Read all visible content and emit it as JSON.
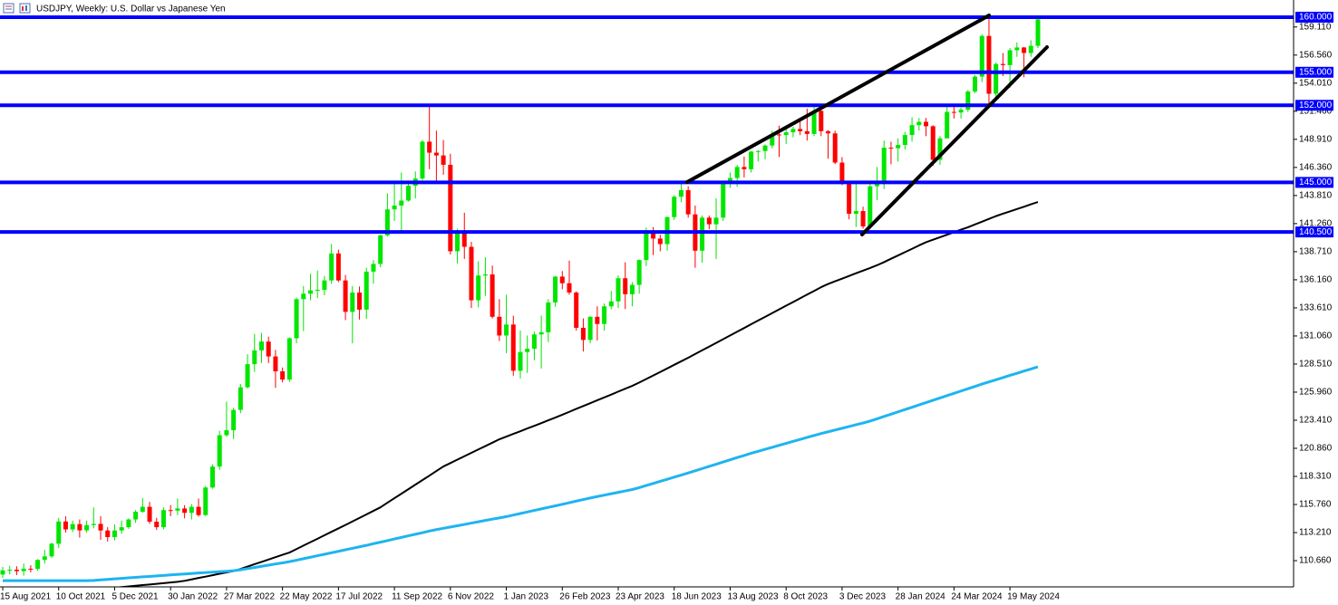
{
  "chart_data": {
    "type": "candlestick",
    "title": "USDJPY, Weekly:  U.S. Dollar vs Japanese Yen",
    "up_color": "#00e600",
    "down_color": "#ff0000",
    "ylim": [
      108.28,
      161.56
    ],
    "yticks": [
      {
        "value": 110.66,
        "label": "110.660"
      },
      {
        "value": 113.21,
        "label": "113.210"
      },
      {
        "value": 115.76,
        "label": "115.760"
      },
      {
        "value": 118.31,
        "label": "118.310"
      },
      {
        "value": 120.86,
        "label": "120.860"
      },
      {
        "value": 123.41,
        "label": "123.410"
      },
      {
        "value": 125.96,
        "label": "125.960"
      },
      {
        "value": 128.51,
        "label": "128.510"
      },
      {
        "value": 131.06,
        "label": "131.060"
      },
      {
        "value": 133.61,
        "label": "133.610"
      },
      {
        "value": 136.16,
        "label": "136.160"
      },
      {
        "value": 138.71,
        "label": "138.710"
      },
      {
        "value": 141.26,
        "label": "141.260"
      },
      {
        "value": 143.81,
        "label": "143.810"
      },
      {
        "value": 146.36,
        "label": "146.360"
      },
      {
        "value": 148.91,
        "label": "148.910"
      },
      {
        "value": 151.46,
        "label": "151.460"
      },
      {
        "value": 154.01,
        "label": "154.010"
      },
      {
        "value": 156.56,
        "label": "156.560"
      },
      {
        "value": 159.11,
        "label": "159.110"
      }
    ],
    "level_color": "#0000ff",
    "levels": [
      {
        "value": 160,
        "label": "160.000"
      },
      {
        "value": 155,
        "label": "155.000"
      },
      {
        "value": 152,
        "label": "152.000"
      },
      {
        "value": 145,
        "label": "145.000"
      },
      {
        "value": 140.5,
        "label": "140.500"
      }
    ],
    "categories": [
      "15 Aug 2021",
      null,
      null,
      null,
      null,
      null,
      null,
      null,
      "10 Oct 2021",
      null,
      null,
      null,
      null,
      null,
      null,
      null,
      "5 Dec 2021",
      null,
      null,
      null,
      null,
      null,
      null,
      null,
      "30 Jan 2022",
      null,
      null,
      null,
      null,
      null,
      null,
      null,
      "27 Mar 2022",
      null,
      null,
      null,
      null,
      null,
      null,
      null,
      "22 May 2022",
      null,
      null,
      null,
      null,
      null,
      null,
      null,
      "17 Jul 2022",
      null,
      null,
      null,
      null,
      null,
      null,
      null,
      "11 Sep 2022",
      null,
      null,
      null,
      null,
      null,
      null,
      null,
      "6 Nov 2022",
      null,
      null,
      null,
      null,
      null,
      null,
      null,
      "1 Jan 2023",
      null,
      null,
      null,
      null,
      null,
      null,
      null,
      "26 Feb 2023",
      null,
      null,
      null,
      null,
      null,
      null,
      null,
      "23 Apr 2023",
      null,
      null,
      null,
      null,
      null,
      null,
      null,
      "18 Jun 2023",
      null,
      null,
      null,
      null,
      null,
      null,
      null,
      "13 Aug 2023",
      null,
      null,
      null,
      null,
      null,
      null,
      null,
      "8 Oct 2023",
      null,
      null,
      null,
      null,
      null,
      null,
      null,
      "3 Dec 2023",
      null,
      null,
      null,
      null,
      null,
      null,
      null,
      "28 Jan 2024",
      null,
      null,
      null,
      null,
      null,
      null,
      null,
      "24 Mar 2024",
      null,
      null,
      null,
      null,
      null,
      null,
      null,
      "19 May 2024",
      null,
      null,
      null,
      null
    ],
    "open": [
      109.4,
      109.78,
      109.84,
      109.71,
      109.93,
      109.92,
      110.73,
      111.05,
      112.2,
      114.22,
      113.5,
      113.98,
      113.41,
      113.89,
      114.0,
      113.4,
      112.8,
      113.4,
      113.7,
      114.4,
      115.1,
      115.55,
      114.2,
      113.7,
      115.25,
      115.2,
      115.4,
      115.0,
      115.55,
      114.8,
      117.3,
      119.2,
      122.05,
      122.5,
      124.35,
      126.4,
      128.5,
      129.75,
      130.55,
      129.2,
      127.85,
      127.1,
      130.85,
      134.4,
      134.9,
      135.2,
      135.25,
      136.1,
      138.55,
      136.1,
      133.25,
      135.0,
      133.45,
      136.9,
      137.6,
      140.2,
      142.55,
      142.9,
      143.35,
      144.7,
      145.35,
      148.7,
      147.7,
      147.45,
      146.6,
      138.75,
      140.4,
      139.15,
      134.3,
      136.55,
      136.65,
      132.8,
      131.1,
      132.1,
      127.9,
      129.6,
      129.9,
      131.2,
      131.4,
      134.1,
      136.45,
      135.85,
      135.0,
      131.8,
      130.7,
      132.8,
      132.15,
      133.75,
      134.2,
      136.3,
      134.85,
      135.7,
      137.95,
      140.6,
      139.9,
      139.4,
      141.85,
      143.7,
      144.3,
      142.1,
      138.8,
      141.8,
      141.2,
      141.8,
      144.95,
      145.4,
      146.4,
      146.2,
      147.8,
      147.85,
      148.35,
      149.35,
      149.3,
      149.55,
      149.85,
      149.65,
      149.4,
      151.5,
      149.65,
      149.45,
      146.8,
      144.95,
      142.15,
      142.4,
      141.0,
      144.65,
      144.9,
      148.15,
      148.1,
      148.4,
      149.3,
      150.2,
      150.5,
      150.1,
      147.05,
      149.0,
      151.4,
      151.35,
      151.6,
      153.25,
      154.6,
      158.3,
      153.05,
      155.75,
      155.65,
      157.0,
      157.25,
      156.75,
      157.4
    ],
    "high": [
      110.1,
      110.2,
      110.15,
      110.4,
      110.25,
      110.8,
      111.65,
      112.3,
      114.55,
      114.7,
      114.3,
      114.4,
      114.3,
      115.5,
      114.7,
      113.7,
      113.95,
      114.3,
      114.5,
      115.25,
      116.35,
      116.0,
      114.55,
      115.5,
      115.7,
      116.3,
      115.7,
      115.8,
      116.3,
      117.45,
      119.4,
      122.45,
      125.1,
      124.55,
      126.7,
      129.4,
      131.25,
      131.35,
      131.0,
      129.8,
      128.2,
      130.95,
      134.55,
      135.6,
      136.7,
      137.0,
      136.5,
      139.4,
      138.9,
      136.6,
      135.6,
      135.55,
      137.25,
      137.95,
      140.25,
      144.0,
      144.95,
      145.9,
      145.0,
      146.0,
      148.85,
      151.95,
      149.7,
      148.85,
      147.6,
      140.8,
      142.25,
      139.6,
      137.85,
      138.2,
      137.45,
      134.4,
      134.8,
      132.9,
      131.55,
      131.1,
      131.45,
      132.9,
      134.4,
      136.5,
      136.95,
      137.9,
      135.1,
      132.65,
      132.85,
      133.75,
      134.0,
      135.15,
      136.55,
      137.75,
      135.95,
      138.0,
      140.9,
      140.95,
      140.25,
      141.9,
      143.85,
      145.05,
      144.65,
      142.9,
      142.0,
      142.0,
      143.55,
      145.0,
      145.9,
      146.6,
      147.35,
      147.85,
      147.95,
      148.45,
      149.7,
      150.15,
      149.85,
      150.05,
      150.75,
      151.7,
      151.9,
      151.9,
      149.75,
      149.7,
      147.3,
      145.0,
      144.95,
      142.8,
      145.0,
      146.4,
      148.8,
      148.7,
      149.0,
      149.6,
      150.9,
      150.85,
      150.85,
      150.2,
      149.2,
      151.85,
      151.95,
      151.8,
      153.4,
      154.75,
      158.45,
      160.2,
      155.9,
      156.75,
      157.2,
      157.7,
      157.3,
      157.9,
      159.95
    ],
    "low": [
      109.1,
      109.4,
      109.35,
      109.3,
      109.6,
      109.75,
      110.4,
      110.9,
      111.8,
      113.2,
      113.25,
      112.75,
      113.2,
      113.6,
      112.55,
      112.4,
      112.5,
      113.1,
      113.55,
      114.1,
      115.0,
      114.0,
      113.45,
      113.5,
      114.7,
      114.8,
      114.5,
      114.4,
      114.65,
      114.7,
      117.2,
      118.9,
      121.9,
      121.7,
      124.05,
      126.3,
      127.8,
      128.6,
      128.6,
      126.35,
      126.85,
      126.9,
      130.4,
      131.5,
      134.3,
      134.5,
      134.75,
      135.8,
      135.95,
      132.5,
      130.4,
      132.55,
      132.6,
      135.8,
      137.3,
      140.1,
      141.5,
      140.35,
      143.25,
      143.55,
      145.2,
      146.2,
      145.1,
      145.7,
      138.45,
      137.65,
      138.05,
      133.6,
      133.65,
      134.7,
      132.65,
      130.6,
      129.5,
      127.45,
      127.2,
      127.7,
      128.85,
      128.1,
      130.5,
      133.7,
      135.3,
      134.8,
      131.55,
      129.65,
      130.4,
      130.65,
      131.55,
      133.5,
      133.6,
      133.5,
      133.75,
      134.9,
      137.4,
      138.4,
      138.75,
      138.8,
      141.6,
      143.2,
      141.8,
      137.25,
      137.7,
      140.75,
      138.05,
      141.5,
      144.5,
      144.6,
      145.45,
      145.9,
      146.9,
      147.1,
      148.1,
      147.3,
      148.5,
      149.1,
      149.3,
      148.8,
      149.2,
      149.2,
      147.15,
      146.65,
      144.75,
      141.65,
      140.95,
      140.8,
      140.85,
      143.4,
      144.4,
      146.65,
      146.9,
      148.0,
      148.7,
      149.7,
      149.2,
      146.5,
      146.6,
      149.0,
      150.8,
      150.8,
      151.4,
      153.1,
      154.1,
      151.85,
      152.8,
      154.65,
      153.6,
      156.4,
      154.55,
      156.4,
      157.2
    ],
    "close": [
      109.78,
      109.84,
      109.71,
      109.93,
      109.92,
      110.73,
      111.05,
      112.2,
      114.22,
      113.5,
      113.98,
      113.41,
      113.89,
      114.0,
      113.4,
      112.8,
      113.4,
      113.7,
      114.4,
      115.1,
      115.55,
      114.2,
      113.7,
      115.25,
      115.2,
      115.4,
      115.0,
      115.55,
      114.8,
      117.3,
      119.2,
      122.05,
      122.5,
      124.35,
      126.4,
      128.5,
      129.75,
      130.55,
      129.2,
      127.85,
      127.1,
      130.85,
      134.4,
      134.9,
      135.2,
      135.25,
      136.1,
      138.55,
      136.1,
      133.25,
      135.0,
      133.45,
      136.9,
      137.6,
      140.2,
      142.55,
      142.9,
      143.35,
      144.7,
      145.35,
      148.7,
      147.7,
      147.45,
      146.6,
      138.75,
      140.4,
      139.15,
      134.3,
      136.55,
      136.65,
      132.8,
      131.1,
      132.1,
      127.9,
      129.6,
      129.9,
      131.2,
      131.4,
      134.1,
      136.45,
      135.85,
      135.0,
      131.8,
      130.7,
      132.8,
      132.15,
      133.75,
      134.2,
      136.3,
      134.85,
      135.7,
      137.95,
      140.6,
      139.9,
      139.4,
      141.85,
      143.7,
      144.3,
      142.1,
      138.8,
      141.8,
      141.2,
      141.8,
      144.95,
      145.4,
      146.4,
      146.2,
      147.8,
      147.85,
      148.35,
      149.35,
      149.3,
      149.55,
      149.85,
      149.65,
      149.4,
      151.5,
      149.65,
      149.45,
      146.8,
      144.95,
      142.15,
      142.4,
      141.0,
      144.65,
      144.9,
      148.15,
      148.1,
      148.4,
      149.3,
      150.2,
      150.5,
      150.1,
      147.05,
      149.0,
      151.4,
      151.35,
      151.6,
      153.25,
      154.6,
      158.3,
      153.05,
      155.75,
      155.65,
      157.0,
      157.25,
      156.75,
      157.4,
      159.8
    ],
    "series": [
      {
        "color": "#000000",
        "values": [
          null,
          null,
          null,
          null,
          null,
          null,
          null,
          null,
          null,
          null,
          null,
          null,
          null,
          null,
          108.08,
          108.14,
          108.2,
          108.26,
          108.32,
          108.38,
          108.44,
          108.5,
          108.56,
          108.62,
          108.68,
          108.74,
          108.83,
          108.96,
          109.09,
          109.21,
          109.34,
          109.47,
          109.59,
          109.72,
          109.91,
          110.12,
          110.34,
          110.55,
          110.76,
          110.98,
          111.19,
          111.4,
          111.71,
          112.03,
          112.34,
          112.65,
          112.97,
          113.28,
          113.59,
          113.9,
          114.22,
          114.54,
          114.86,
          115.18,
          115.5,
          115.92,
          116.33,
          116.74,
          117.15,
          117.56,
          117.97,
          118.38,
          118.8,
          119.21,
          119.52,
          119.83,
          120.14,
          120.45,
          120.76,
          121.06,
          121.37,
          121.68,
          121.92,
          122.17,
          122.41,
          122.66,
          122.9,
          123.15,
          123.4,
          123.65,
          123.91,
          124.17,
          124.44,
          124.7,
          124.96,
          125.22,
          125.48,
          125.74,
          126.01,
          126.27,
          126.53,
          126.83,
          127.15,
          127.47,
          127.79,
          128.11,
          128.44,
          128.76,
          129.08,
          129.42,
          129.76,
          130.09,
          130.43,
          130.77,
          131.11,
          131.45,
          131.78,
          132.12,
          132.46,
          132.79,
          133.13,
          133.47,
          133.81,
          134.14,
          134.48,
          134.82,
          135.15,
          135.49,
          135.78,
          136.02,
          136.26,
          136.51,
          136.75,
          136.99,
          137.23,
          137.48,
          137.76,
          138.07,
          138.37,
          138.67,
          138.97,
          139.28,
          139.57,
          139.8,
          140.02,
          140.25,
          140.48,
          140.71,
          140.93,
          141.18,
          141.43,
          141.69,
          141.94,
          142.16,
          142.37,
          142.58,
          142.79,
          143.01,
          143.22
        ]
      },
      {
        "color": "#1eb4f0",
        "values": [
          108.85,
          108.85,
          108.85,
          108.85,
          108.85,
          108.85,
          108.85,
          108.85,
          108.85,
          108.85,
          108.85,
          108.85,
          108.85,
          108.87,
          108.92,
          108.96,
          109.01,
          109.05,
          109.1,
          109.14,
          109.19,
          109.23,
          109.28,
          109.32,
          109.37,
          109.41,
          109.45,
          109.49,
          109.54,
          109.58,
          109.62,
          109.66,
          109.7,
          109.75,
          109.83,
          109.94,
          110.04,
          110.15,
          110.25,
          110.36,
          110.46,
          110.57,
          110.7,
          110.84,
          110.97,
          111.11,
          111.24,
          111.38,
          111.51,
          111.65,
          111.78,
          111.92,
          112.05,
          112.2,
          112.34,
          112.48,
          112.63,
          112.77,
          112.92,
          113.06,
          113.2,
          113.35,
          113.48,
          113.6,
          113.72,
          113.83,
          113.95,
          114.07,
          114.19,
          114.31,
          114.43,
          114.54,
          114.66,
          114.8,
          114.94,
          115.08,
          115.22,
          115.36,
          115.5,
          115.64,
          115.78,
          115.92,
          116.07,
          116.21,
          116.35,
          116.48,
          116.61,
          116.74,
          116.86,
          116.99,
          117.12,
          117.29,
          117.48,
          117.67,
          117.86,
          118.05,
          118.24,
          118.43,
          118.62,
          118.82,
          119.02,
          119.22,
          119.42,
          119.62,
          119.82,
          120.02,
          120.21,
          120.41,
          120.59,
          120.77,
          120.95,
          121.13,
          121.31,
          121.49,
          121.67,
          121.85,
          122.03,
          122.2,
          122.36,
          122.52,
          122.68,
          122.84,
          123.0,
          123.16,
          123.33,
          123.54,
          123.75,
          123.96,
          124.17,
          124.38,
          124.59,
          124.8,
          125.01,
          125.22,
          125.43,
          125.64,
          125.85,
          126.06,
          126.27,
          126.48,
          126.69,
          126.89,
          127.08,
          127.28,
          127.48,
          127.67,
          127.87,
          128.06,
          128.26
        ]
      }
    ]
  }
}
